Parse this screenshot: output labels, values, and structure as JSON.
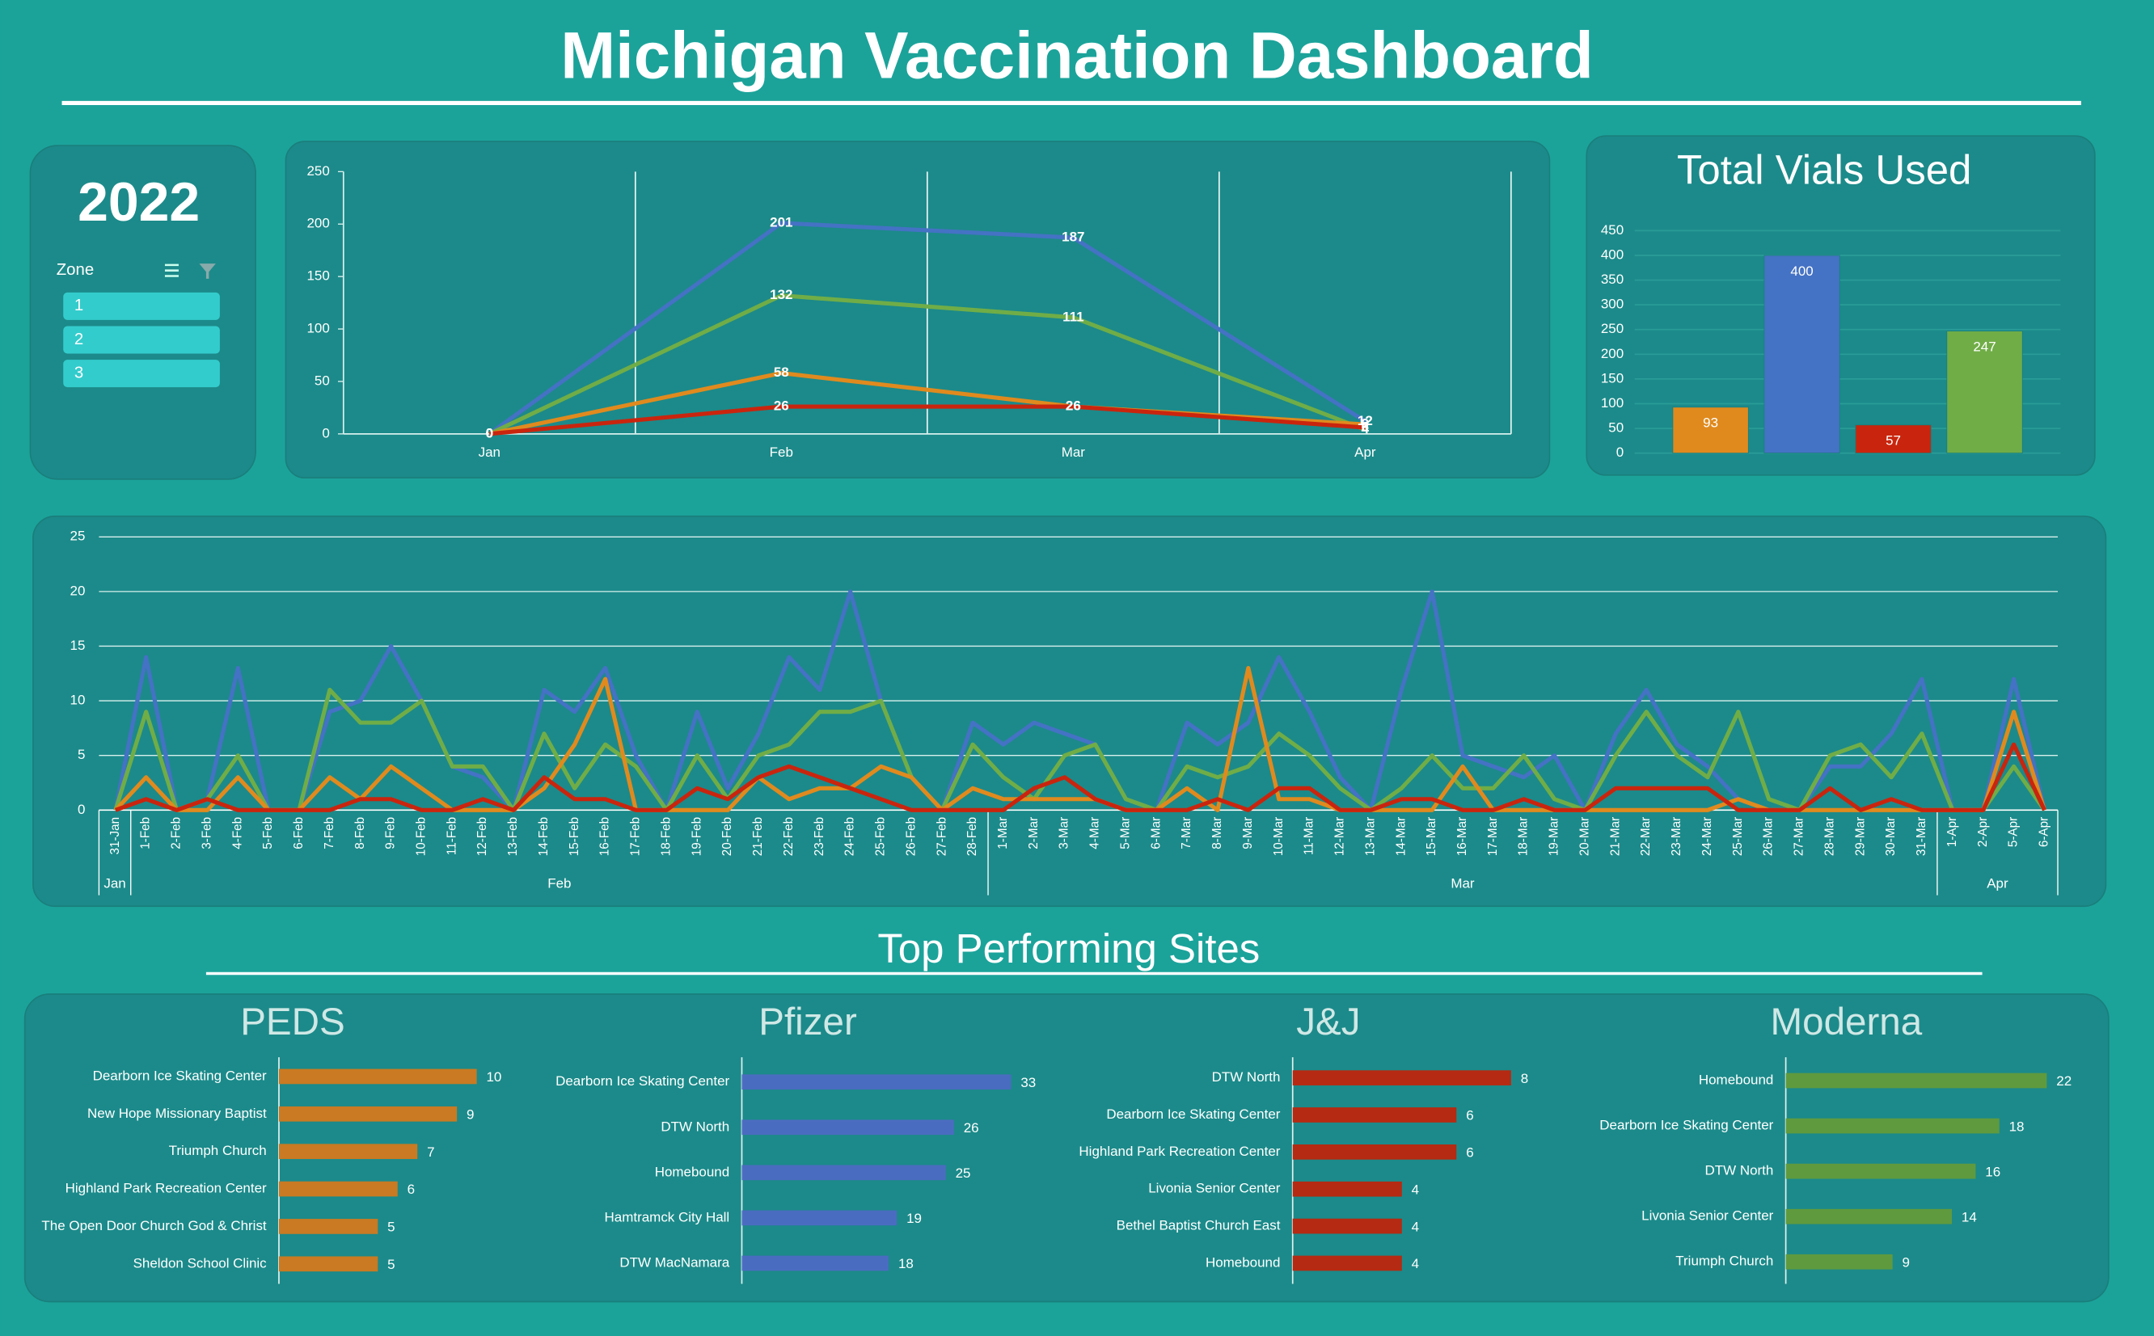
{
  "title": "Michigan Vaccination Dashboard",
  "slicer": {
    "header": "2022",
    "field": "Zone",
    "items": [
      "1",
      "2",
      "3"
    ]
  },
  "section_title": "Top Performing Sites",
  "chart_data": [
    {
      "type": "line",
      "categories": [
        "Jan",
        "Feb",
        "Mar",
        "Apr"
      ],
      "ylim": [
        0,
        250
      ],
      "yticks": [
        0,
        50,
        100,
        150,
        200,
        250
      ],
      "grid": "vertical",
      "series": [
        {
          "color": "#4472c4",
          "values": [
            0,
            201,
            187,
            12
          ]
        },
        {
          "color": "#70ad47",
          "values": [
            0,
            132,
            111,
            4
          ]
        },
        {
          "color": "#e08a1e",
          "values": [
            0,
            58,
            26,
            9
          ]
        },
        {
          "color": "#c9250e",
          "values": [
            0,
            26,
            26,
            6
          ]
        }
      ]
    },
    {
      "type": "bar",
      "title": "Total Vials Used",
      "categories": [
        null,
        null,
        null,
        null
      ],
      "values": [
        93,
        400,
        57,
        247
      ],
      "colors": [
        "#e08a1e",
        "#4472c4",
        "#c9250e",
        "#70ad47"
      ],
      "ylim": [
        0,
        450
      ],
      "yticks": [
        0,
        50,
        100,
        150,
        200,
        250,
        300,
        350,
        400,
        450
      ],
      "grid": "horizontal"
    },
    {
      "type": "line",
      "grid": "horizontal",
      "ylim": [
        0,
        25
      ],
      "yticks": [
        0,
        5,
        10,
        15,
        20,
        25
      ],
      "groups": [
        "Jan",
        "Feb",
        "Mar",
        "Apr"
      ],
      "categories": [
        "31-Jan",
        "1-Feb",
        "2-Feb",
        "3-Feb",
        "4-Feb",
        "5-Feb",
        "6-Feb",
        "7-Feb",
        "8-Feb",
        "9-Feb",
        "10-Feb",
        "11-Feb",
        "12-Feb",
        "13-Feb",
        "14-Feb",
        "15-Feb",
        "16-Feb",
        "17-Feb",
        "18-Feb",
        "19-Feb",
        "20-Feb",
        "21-Feb",
        "22-Feb",
        "23-Feb",
        "24-Feb",
        "25-Feb",
        "26-Feb",
        "27-Feb",
        "28-Feb",
        "1-Mar",
        "2-Mar",
        "3-Mar",
        "4-Mar",
        "5-Mar",
        "6-Mar",
        "7-Mar",
        "8-Mar",
        "9-Mar",
        "10-Mar",
        "11-Mar",
        "12-Mar",
        "13-Mar",
        "14-Mar",
        "15-Mar",
        "16-Mar",
        "17-Mar",
        "18-Mar",
        "19-Mar",
        "20-Mar",
        "21-Mar",
        "22-Mar",
        "23-Mar",
        "24-Mar",
        "25-Mar",
        "26-Mar",
        "27-Mar",
        "28-Mar",
        "29-Mar",
        "30-Mar",
        "31-Mar",
        "1-Apr",
        "2-Apr",
        "5-Apr",
        "6-Apr"
      ],
      "series": [
        {
          "color": "#4472c4",
          "values": [
            0,
            14,
            0,
            1,
            13,
            0,
            0,
            9,
            10,
            15,
            10,
            4,
            3,
            0,
            11,
            9,
            13,
            5,
            0,
            9,
            2,
            7,
            14,
            11,
            20,
            10,
            3,
            0,
            8,
            6,
            8,
            7,
            6,
            1,
            0,
            8,
            6,
            8,
            14,
            9,
            3,
            0,
            11,
            20,
            5,
            4,
            3,
            5,
            0,
            7,
            11,
            6,
            4,
            1,
            0,
            0,
            4,
            4,
            7,
            12,
            0,
            0,
            12,
            0
          ]
        },
        {
          "color": "#70ad47",
          "values": [
            0,
            9,
            0,
            1,
            5,
            0,
            0,
            11,
            8,
            8,
            10,
            4,
            4,
            0,
            7,
            2,
            6,
            4,
            0,
            5,
            1,
            5,
            6,
            9,
            9,
            10,
            3,
            0,
            6,
            3,
            1,
            5,
            6,
            1,
            0,
            4,
            3,
            4,
            7,
            5,
            2,
            0,
            2,
            5,
            2,
            2,
            5,
            1,
            0,
            5,
            9,
            5,
            3,
            9,
            1,
            0,
            5,
            6,
            3,
            7,
            0,
            0,
            4,
            0
          ]
        },
        {
          "color": "#e08a1e",
          "values": [
            0,
            3,
            0,
            0,
            3,
            0,
            0,
            3,
            1,
            4,
            2,
            0,
            0,
            0,
            2,
            6,
            12,
            0,
            0,
            0,
            0,
            3,
            1,
            2,
            2,
            4,
            3,
            0,
            2,
            1,
            1,
            1,
            1,
            0,
            0,
            2,
            0,
            13,
            1,
            1,
            0,
            0,
            0,
            0,
            4,
            0,
            0,
            0,
            0,
            0,
            0,
            0,
            0,
            1,
            0,
            0,
            0,
            0,
            0,
            0,
            0,
            0,
            9,
            0
          ]
        },
        {
          "color": "#c9250e",
          "values": [
            0,
            1,
            0,
            1,
            0,
            0,
            0,
            0,
            1,
            1,
            0,
            0,
            1,
            0,
            3,
            1,
            1,
            0,
            0,
            2,
            1,
            3,
            4,
            3,
            2,
            1,
            0,
            0,
            0,
            0,
            2,
            3,
            1,
            0,
            0,
            0,
            1,
            0,
            2,
            2,
            0,
            0,
            1,
            1,
            0,
            0,
            1,
            0,
            0,
            2,
            2,
            2,
            2,
            0,
            0,
            0,
            2,
            0,
            1,
            0,
            0,
            0,
            6,
            0
          ]
        }
      ]
    },
    {
      "type": "barh",
      "title": "PEDS",
      "color": "#c97a22",
      "categories": [
        "Dearborn Ice Skating Center",
        "New Hope Missionary Baptist",
        "Triumph Church",
        "Highland Park Recreation Center",
        "The Open Door Church God & Christ",
        "Sheldon School Clinic"
      ],
      "values": [
        10,
        9,
        7,
        6,
        5,
        5
      ]
    },
    {
      "type": "barh",
      "title": "Pfizer",
      "color": "#4a6cc0",
      "categories": [
        "Dearborn Ice Skating Center",
        "DTW North",
        "Homebound",
        "Hamtramck City Hall",
        "DTW MacNamara"
      ],
      "values": [
        33,
        26,
        25,
        19,
        18
      ]
    },
    {
      "type": "barh",
      "title": "J&J",
      "color": "#b52a12",
      "categories": [
        "DTW North",
        "Dearborn Ice Skating Center",
        "Highland Park Recreation Center",
        "Livonia Senior Center",
        "Bethel Baptist Church East",
        "Homebound"
      ],
      "values": [
        8,
        6,
        6,
        4,
        4,
        4
      ]
    },
    {
      "type": "barh",
      "title": "Moderna",
      "color": "#5f9a3e",
      "categories": [
        "Homebound",
        "Dearborn Ice Skating Center",
        "DTW North",
        "Livonia Senior Center",
        "Triumph Church"
      ],
      "values": [
        22,
        18,
        16,
        14,
        9
      ]
    }
  ]
}
